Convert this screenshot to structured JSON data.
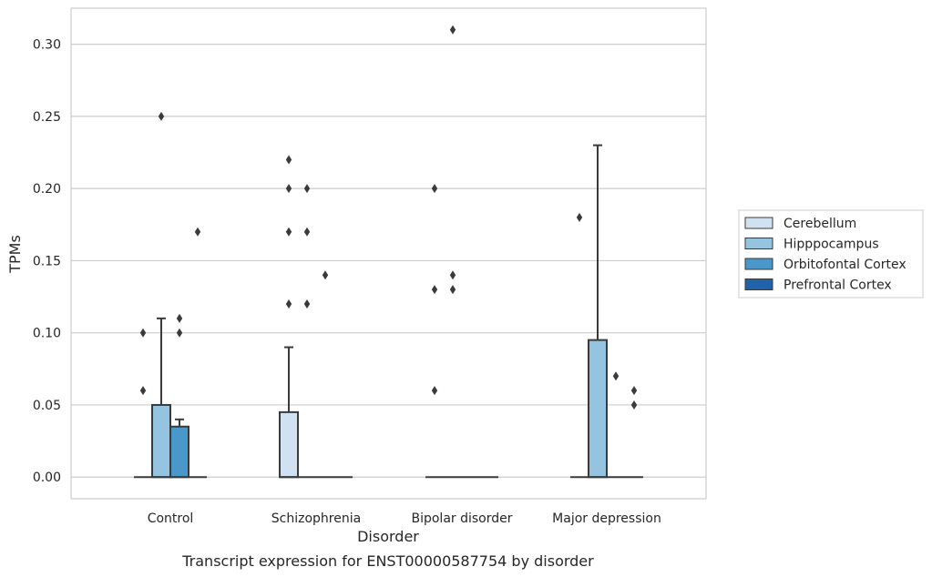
{
  "chart_data": {
    "type": "box",
    "title": "",
    "caption": "Transcript expression for ENST00000587754 by disorder",
    "xlabel": "Disorder",
    "ylabel": "TPMs",
    "ylim": [
      -0.015,
      0.325
    ],
    "yticks": [
      0.0,
      0.05,
      0.1,
      0.15,
      0.2,
      0.25,
      0.3
    ],
    "ytick_labels": [
      "0.00",
      "0.05",
      "0.10",
      "0.15",
      "0.20",
      "0.25",
      "0.30"
    ],
    "categories": [
      "Control",
      "Schizophrenia",
      "Bipolar disorder",
      "Major depression"
    ],
    "grid": true,
    "legend_position": "right",
    "series": [
      {
        "name": "Cerebellum",
        "color": "#d0e1f2",
        "boxes": [
          {
            "category": "Control",
            "q1": 0,
            "median": 0,
            "q3": 0,
            "whisker_low": 0,
            "whisker_high": 0,
            "outliers": [
              0.06,
              0.1
            ]
          },
          {
            "category": "Schizophrenia",
            "q1": 0,
            "median": 0,
            "q3": 0.045,
            "whisker_low": 0,
            "whisker_high": 0.09,
            "outliers": [
              0.12,
              0.17,
              0.2,
              0.22
            ]
          },
          {
            "category": "Bipolar disorder",
            "q1": 0,
            "median": 0,
            "q3": 0,
            "whisker_low": 0,
            "whisker_high": 0,
            "outliers": [
              0.06,
              0.13,
              0.2
            ]
          },
          {
            "category": "Major depression",
            "q1": 0,
            "median": 0,
            "q3": 0,
            "whisker_low": 0,
            "whisker_high": 0,
            "outliers": [
              0.18
            ]
          }
        ]
      },
      {
        "name": "Hipppocampus",
        "color": "#94c4df",
        "boxes": [
          {
            "category": "Control",
            "q1": 0,
            "median": 0,
            "q3": 0.05,
            "whisker_low": 0,
            "whisker_high": 0.11,
            "outliers": [
              0.25
            ]
          },
          {
            "category": "Schizophrenia",
            "q1": 0,
            "median": 0,
            "q3": 0,
            "whisker_low": 0,
            "whisker_high": 0,
            "outliers": [
              0.12,
              0.17,
              0.2
            ]
          },
          {
            "category": "Bipolar disorder",
            "q1": 0,
            "median": 0,
            "q3": 0,
            "whisker_low": 0,
            "whisker_high": 0,
            "outliers": [
              0.13,
              0.14,
              0.31
            ]
          },
          {
            "category": "Major depression",
            "q1": 0,
            "median": 0,
            "q3": 0.095,
            "whisker_low": 0,
            "whisker_high": 0.23,
            "outliers": []
          }
        ]
      },
      {
        "name": "Orbitofontal Cortex",
        "color": "#4a98c9",
        "boxes": [
          {
            "category": "Control",
            "q1": 0,
            "median": 0,
            "q3": 0.035,
            "whisker_low": 0,
            "whisker_high": 0.04,
            "outliers": [
              0.1,
              0.11
            ]
          },
          {
            "category": "Schizophrenia",
            "q1": 0,
            "median": 0,
            "q3": 0,
            "whisker_low": 0,
            "whisker_high": 0,
            "outliers": [
              0.14
            ]
          },
          {
            "category": "Bipolar disorder",
            "q1": 0,
            "median": 0,
            "q3": 0,
            "whisker_low": 0,
            "whisker_high": 0,
            "outliers": []
          },
          {
            "category": "Major depression",
            "q1": 0,
            "median": 0,
            "q3": 0,
            "whisker_low": 0,
            "whisker_high": 0,
            "outliers": [
              0.07
            ]
          }
        ]
      },
      {
        "name": "Prefrontal Cortex",
        "color": "#2163aa",
        "boxes": [
          {
            "category": "Control",
            "q1": 0,
            "median": 0,
            "q3": 0,
            "whisker_low": 0,
            "whisker_high": 0,
            "outliers": [
              0.17
            ]
          },
          {
            "category": "Schizophrenia",
            "q1": 0,
            "median": 0,
            "q3": 0,
            "whisker_low": 0,
            "whisker_high": 0,
            "outliers": []
          },
          {
            "category": "Bipolar disorder",
            "q1": 0,
            "median": 0,
            "q3": 0,
            "whisker_low": 0,
            "whisker_high": 0,
            "outliers": []
          },
          {
            "category": "Major depression",
            "q1": 0,
            "median": 0,
            "q3": 0,
            "whisker_low": 0,
            "whisker_high": 0,
            "outliers": [
              0.05,
              0.06
            ]
          }
        ]
      }
    ]
  }
}
